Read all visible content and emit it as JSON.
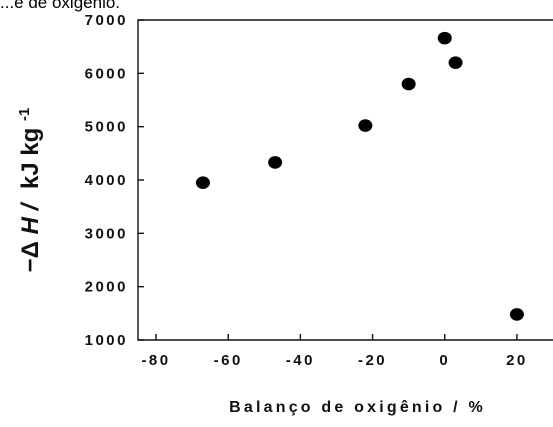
{
  "caption": "...e de oxigênio.",
  "chart_data": {
    "type": "scatter",
    "title": "",
    "xlabel": "Balanço de oxigênio / %",
    "ylabel": {
      "prefix": "−Δ",
      "symbol": "H",
      "separator": "/",
      "unit": "kJ kg",
      "unit_exp": "-1"
    },
    "xlim": [
      -85,
      30
    ],
    "ylim": [
      1000,
      7000
    ],
    "x_ticks": [
      -80,
      -60,
      -40,
      -20,
      0,
      20
    ],
    "y_ticks": [
      1000,
      2000,
      3000,
      4000,
      5000,
      6000,
      7000
    ],
    "grid": false,
    "legend": "none",
    "marker_color": "#000000",
    "series": [
      {
        "points": [
          {
            "x": -67,
            "y": 3950
          },
          {
            "x": -47,
            "y": 4330
          },
          {
            "x": -22,
            "y": 5020
          },
          {
            "x": -10,
            "y": 5800
          },
          {
            "x": 0,
            "y": 6660
          },
          {
            "x": 3,
            "y": 6200
          },
          {
            "x": 20,
            "y": 1480
          }
        ]
      }
    ]
  }
}
